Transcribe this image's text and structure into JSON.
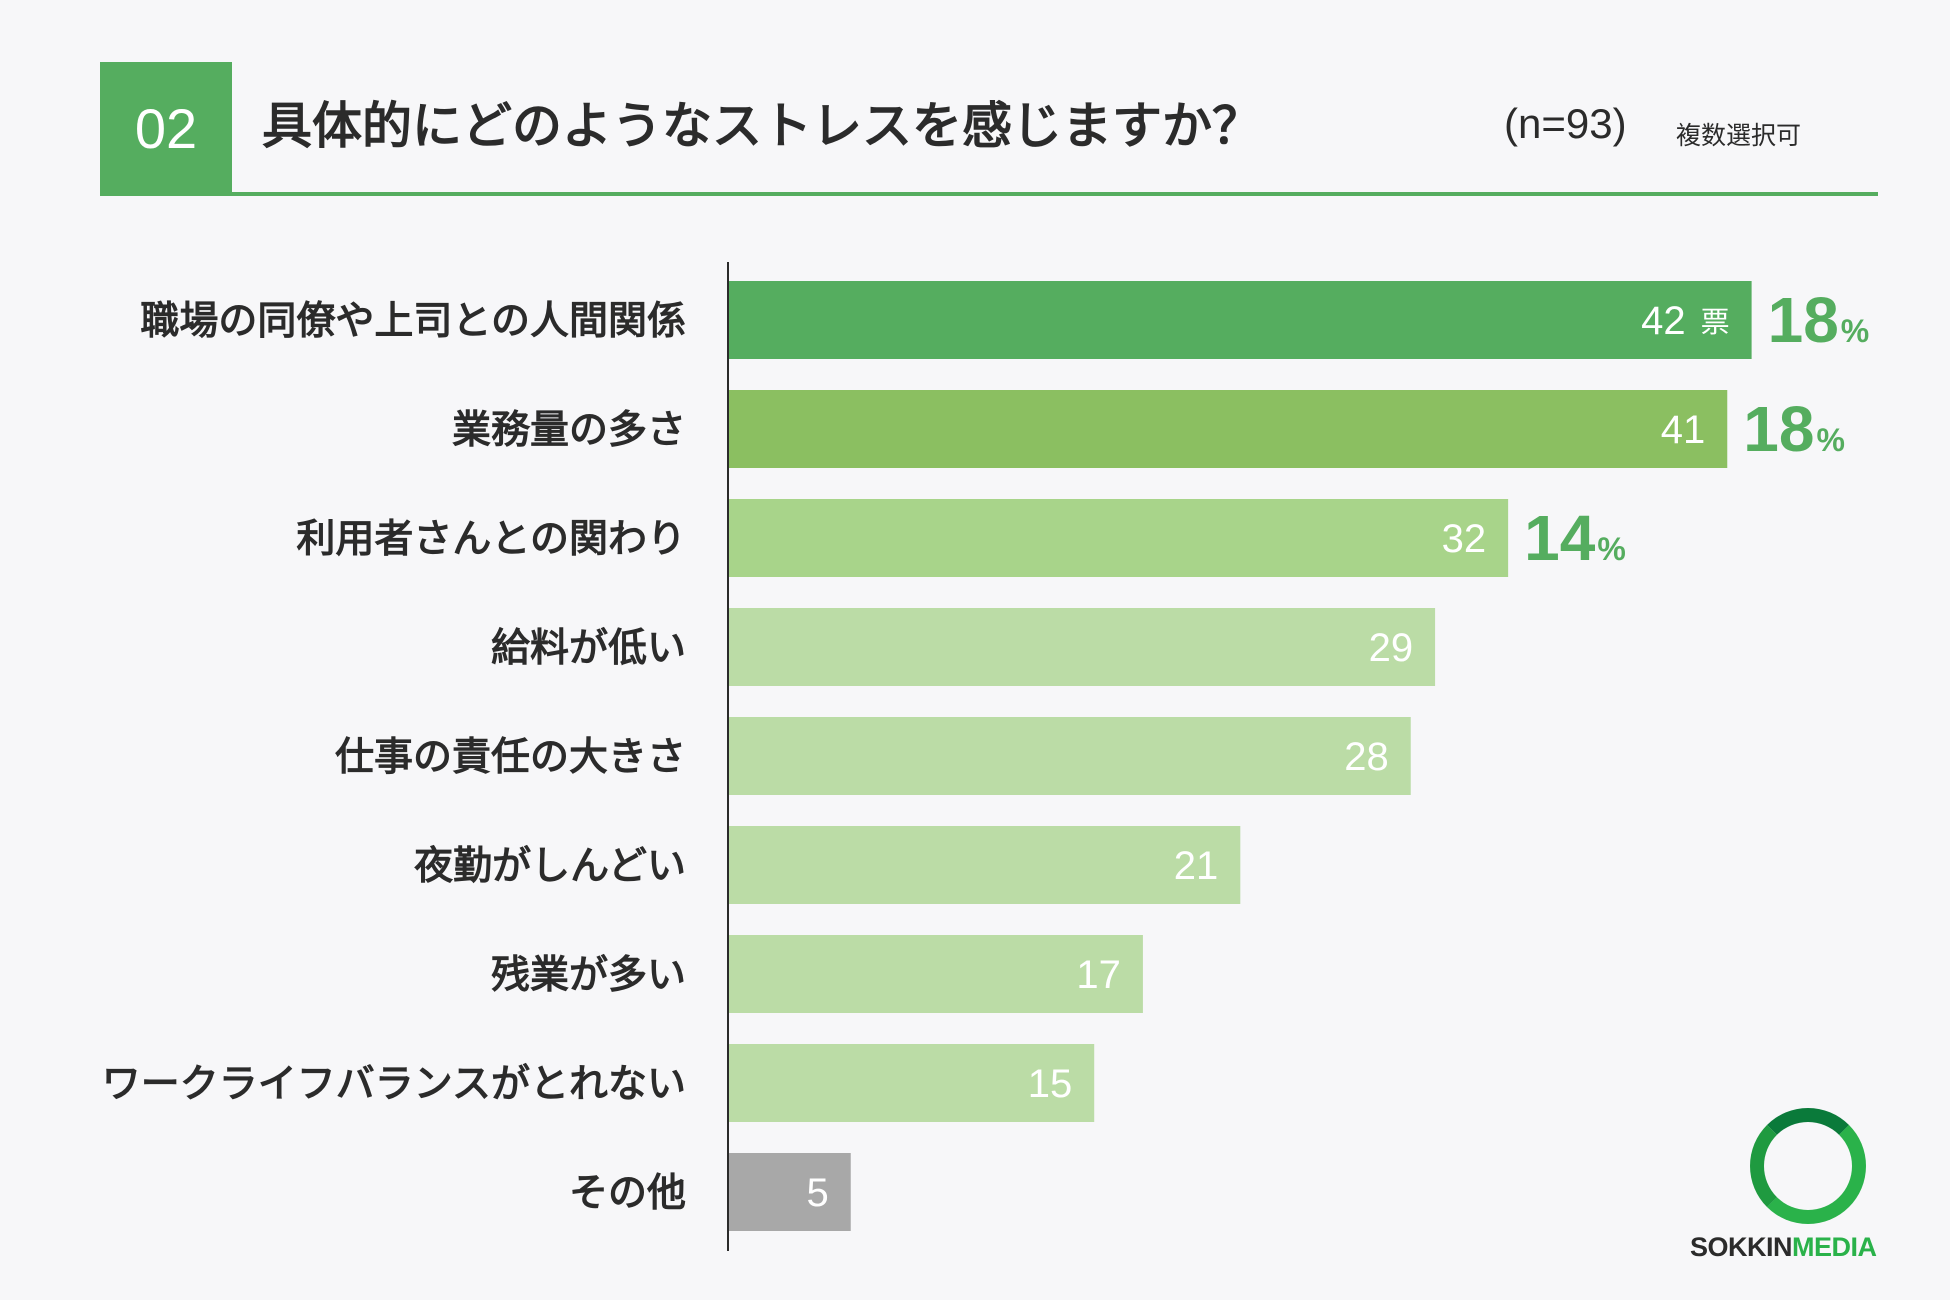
{
  "header": {
    "number": "02",
    "title": "具体的にどのようなストレスを感じますか？",
    "sample": "(n=93)",
    "note": "複数選択可"
  },
  "colors": {
    "accent": "#55ad5f",
    "bar_top1": "#55ad5f",
    "bar_top2": "#8bbf61",
    "bar_top3": "#a8d48a",
    "bar_rest": "#bbdca6",
    "bar_other": "#a8a8a8"
  },
  "chart_data": {
    "type": "bar",
    "orientation": "horizontal",
    "categories": [
      "職場の同僚や上司との人間関係",
      "業務量の多さ",
      "利用者さんとの関わり",
      "給料が低い",
      "仕事の責任の大きさ",
      "夜勤がしんどい",
      "残業が多い",
      "ワークライフバランスがとれない",
      "その他"
    ],
    "values": [
      42,
      41,
      32,
      29,
      28,
      21,
      17,
      15,
      5
    ],
    "value_unit": "票",
    "percent_labels": [
      {
        "index": 0,
        "value": "18",
        "sign": "%"
      },
      {
        "index": 1,
        "value": "18",
        "sign": "%"
      },
      {
        "index": 2,
        "value": "14",
        "sign": "%"
      }
    ],
    "xlim": [
      0,
      46
    ],
    "grid": false,
    "legend": "none"
  },
  "logo": {
    "text_dark": "SOKKIN",
    "text_green": "MEDIA"
  }
}
